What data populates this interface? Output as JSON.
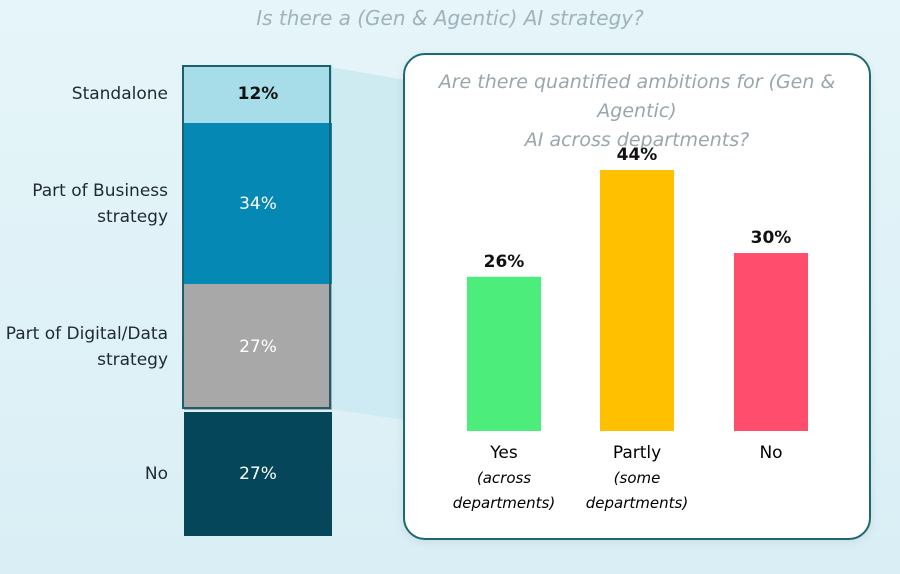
{
  "chart_data": [
    {
      "type": "stacked-bar",
      "title": "Is there a (Gen & Agentic) AI strategy?",
      "segments": [
        {
          "label": "Standalone",
          "value": 12,
          "display": "12%",
          "color": "#a6dde8",
          "text_color": "#111111"
        },
        {
          "label": "Part of Business\nstrategy",
          "value": 34,
          "display": "34%",
          "color": "#0588b3",
          "text_color": "#ffffff"
        },
        {
          "label": "Part of Digital/Data\nstrategy",
          "value": 27,
          "display": "27%",
          "color": "#a8a8a8",
          "text_color": "#ffffff"
        },
        {
          "label": "No",
          "value": 27,
          "display": "27%",
          "color": "#05465a",
          "text_color": "#ffffff"
        }
      ]
    },
    {
      "type": "bar",
      "title": "Are there quantified ambitions for (Gen & Agentic)\nAI across departments?",
      "categories": [
        {
          "label": "Yes",
          "sub": [
            "(across",
            "departments)"
          ]
        },
        {
          "label": "Partly",
          "sub": [
            "(some",
            "departments)"
          ]
        },
        {
          "label": "No",
          "sub": []
        }
      ],
      "values": [
        26,
        44,
        30
      ],
      "value_labels": [
        "26%",
        "44%",
        "30%"
      ],
      "colors": [
        "#4ded7c",
        "#ffc000",
        "#ff4d6d"
      ],
      "ylim": [
        0,
        50
      ],
      "grid": false
    }
  ]
}
